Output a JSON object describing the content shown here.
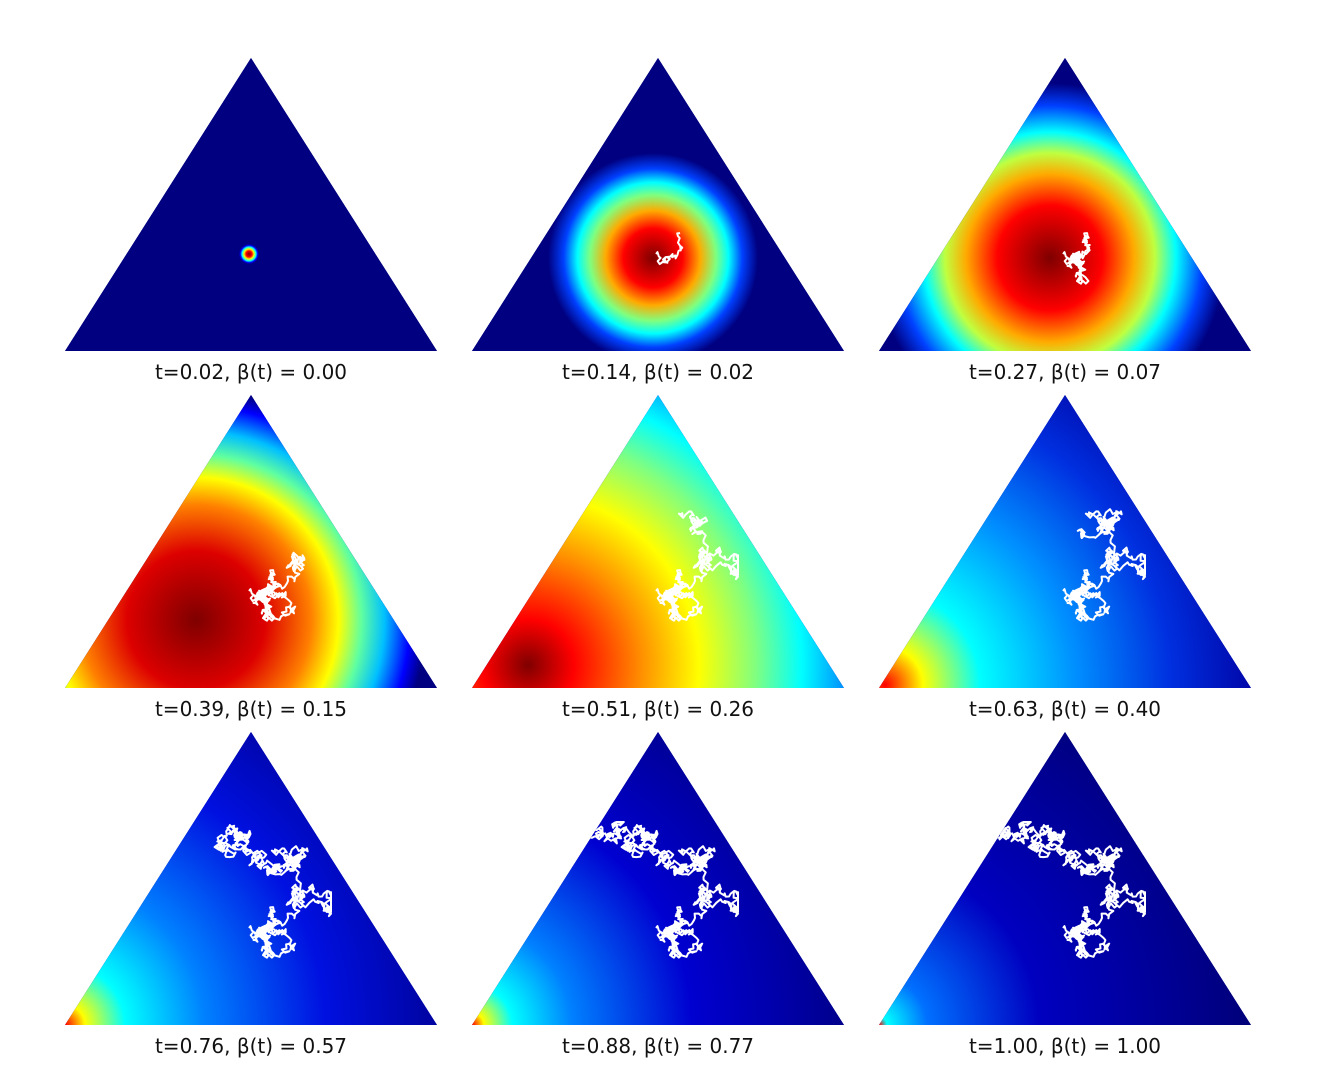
{
  "panels": [
    {
      "caption": "t=0.02, β(t) = 0.00"
    },
    {
      "caption": "t=0.14, β(t) = 0.02"
    },
    {
      "caption": "t=0.27, β(t) = 0.07"
    },
    {
      "caption": "t=0.39, β(t) = 0.15"
    },
    {
      "caption": "t=0.51, β(t) = 0.26"
    },
    {
      "caption": "t=0.63, β(t) = 0.40"
    },
    {
      "caption": "t=0.76, β(t) = 0.57"
    },
    {
      "caption": "t=0.88, β(t) = 0.77"
    },
    {
      "caption": "t=1.00, β(t) = 1.00"
    }
  ]
}
